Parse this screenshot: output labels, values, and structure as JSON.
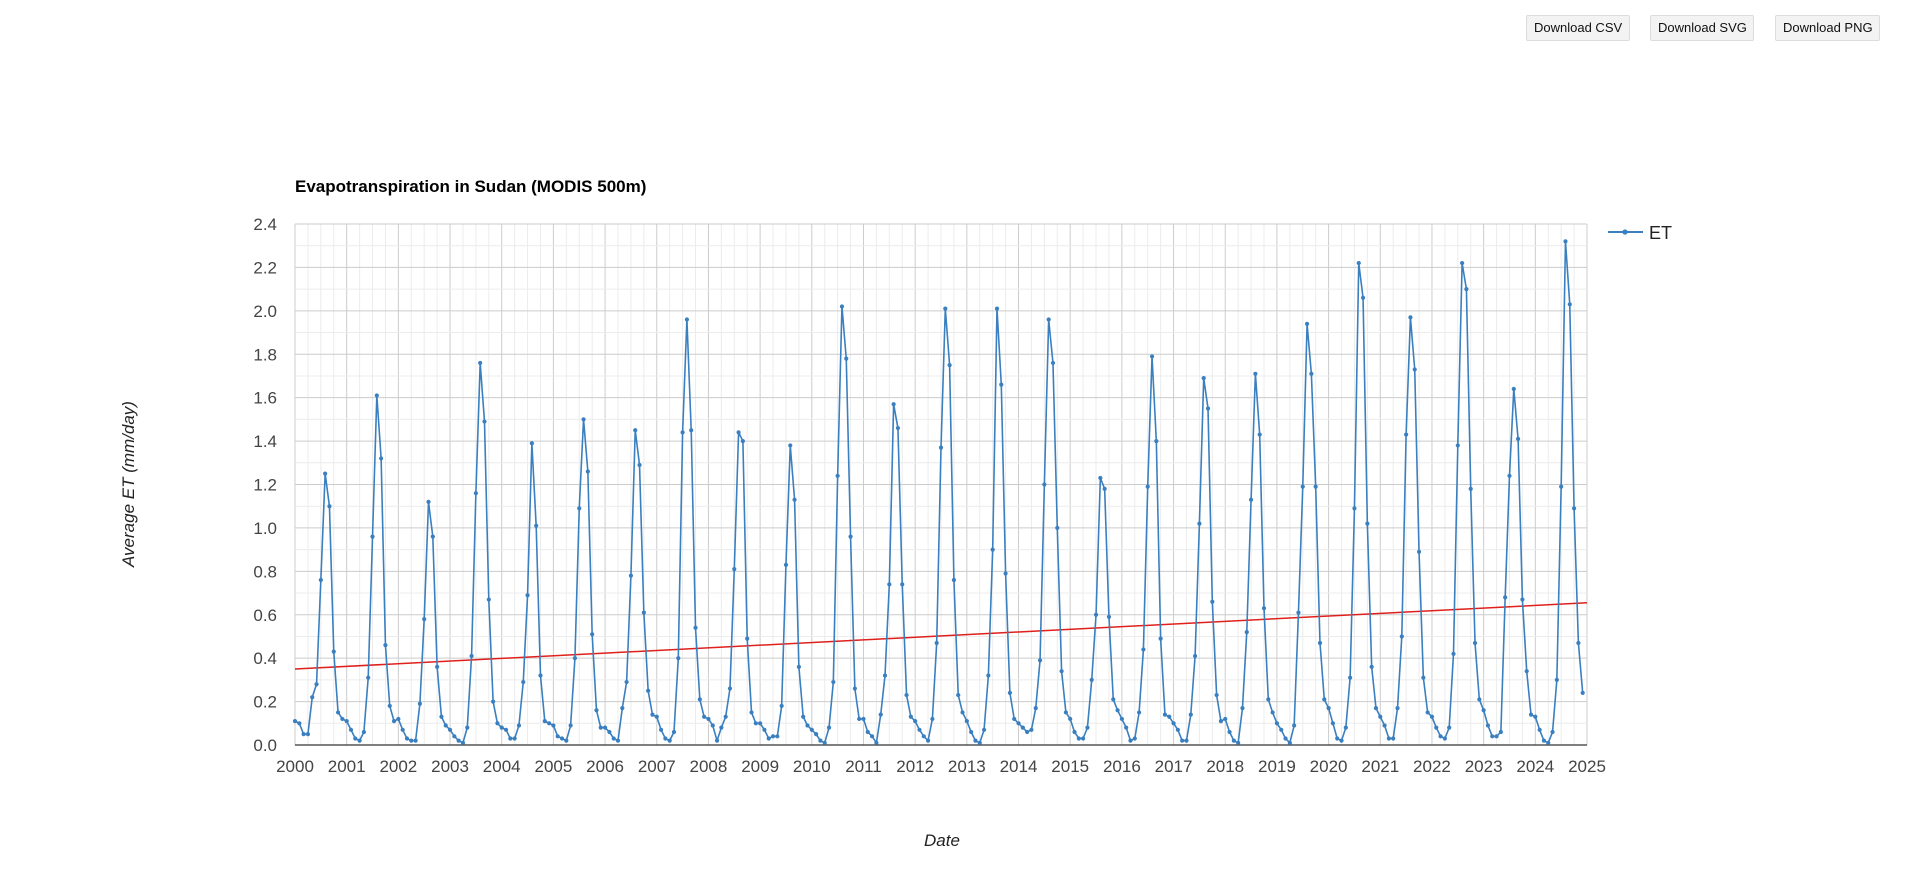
{
  "toolbar": {
    "csv_label": "Download CSV",
    "svg_label": "Download SVG",
    "png_label": "Download PNG"
  },
  "chart_data": {
    "type": "line",
    "title": "Evapotranspiration in Sudan (MODIS 500m)",
    "xlabel": "Date",
    "ylabel": "Average ET (mm/day)",
    "xlim": [
      2000,
      2025
    ],
    "ylim": [
      0,
      2.4
    ],
    "x_ticks": [
      "2000",
      "2001",
      "2002",
      "2003",
      "2004",
      "2005",
      "2006",
      "2007",
      "2008",
      "2009",
      "2010",
      "2011",
      "2012",
      "2013",
      "2014",
      "2015",
      "2016",
      "2017",
      "2018",
      "2019",
      "2020",
      "2021",
      "2022",
      "2023",
      "2024",
      "2025"
    ],
    "y_ticks": [
      "0.0",
      "0.2",
      "0.4",
      "0.6",
      "0.8",
      "1.0",
      "1.2",
      "1.4",
      "1.6",
      "1.8",
      "2.0",
      "2.2",
      "2.4"
    ],
    "grid": true,
    "legend_position": "top-right",
    "series": [
      {
        "name": "ET",
        "color": "#3a7fbf",
        "x_start_year": 2000,
        "monthly_values": [
          0.11,
          0.1,
          0.05,
          0.05,
          0.22,
          0.28,
          0.76,
          1.25,
          1.1,
          0.43,
          0.15,
          0.12,
          0.11,
          0.07,
          0.03,
          0.02,
          0.06,
          0.31,
          0.96,
          1.61,
          1.32,
          0.46,
          0.18,
          0.11,
          0.12,
          0.07,
          0.03,
          0.02,
          0.02,
          0.19,
          0.58,
          1.12,
          0.96,
          0.36,
          0.13,
          0.09,
          0.07,
          0.04,
          0.02,
          0.01,
          0.08,
          0.41,
          1.16,
          1.76,
          1.49,
          0.67,
          0.2,
          0.1,
          0.08,
          0.07,
          0.03,
          0.03,
          0.09,
          0.29,
          0.69,
          1.39,
          1.01,
          0.32,
          0.11,
          0.1,
          0.09,
          0.04,
          0.03,
          0.02,
          0.09,
          0.4,
          1.09,
          1.5,
          1.26,
          0.51,
          0.16,
          0.08,
          0.08,
          0.06,
          0.03,
          0.02,
          0.17,
          0.29,
          0.78,
          1.45,
          1.29,
          0.61,
          0.25,
          0.14,
          0.13,
          0.07,
          0.03,
          0.02,
          0.06,
          0.4,
          1.44,
          1.96,
          1.45,
          0.54,
          0.21,
          0.13,
          0.12,
          0.09,
          0.02,
          0.08,
          0.13,
          0.26,
          0.81,
          1.44,
          1.4,
          0.49,
          0.15,
          0.1,
          0.1,
          0.07,
          0.03,
          0.04,
          0.04,
          0.18,
          0.83,
          1.38,
          1.13,
          0.36,
          0.13,
          0.09,
          0.07,
          0.05,
          0.02,
          0.01,
          0.08,
          0.29,
          1.24,
          2.02,
          1.78,
          0.96,
          0.26,
          0.12,
          0.12,
          0.06,
          0.04,
          0.01,
          0.14,
          0.32,
          0.74,
          1.57,
          1.46,
          0.74,
          0.23,
          0.13,
          0.11,
          0.07,
          0.04,
          0.02,
          0.12,
          0.47,
          1.37,
          2.01,
          1.75,
          0.76,
          0.23,
          0.15,
          0.11,
          0.06,
          0.02,
          0.01,
          0.07,
          0.32,
          0.9,
          2.01,
          1.66,
          0.79,
          0.24,
          0.12,
          0.1,
          0.08,
          0.06,
          0.07,
          0.17,
          0.39,
          1.2,
          1.96,
          1.76,
          1.0,
          0.34,
          0.15,
          0.12,
          0.06,
          0.03,
          0.03,
          0.08,
          0.3,
          0.6,
          1.23,
          1.18,
          0.59,
          0.21,
          0.16,
          0.12,
          0.08,
          0.02,
          0.03,
          0.15,
          0.44,
          1.19,
          1.79,
          1.4,
          0.49,
          0.14,
          0.13,
          0.1,
          0.07,
          0.02,
          0.02,
          0.14,
          0.41,
          1.02,
          1.69,
          1.55,
          0.66,
          0.23,
          0.11,
          0.12,
          0.06,
          0.02,
          0.01,
          0.17,
          0.52,
          1.13,
          1.71,
          1.43,
          0.63,
          0.21,
          0.15,
          0.1,
          0.07,
          0.03,
          0.01,
          0.09,
          0.61,
          1.19,
          1.94,
          1.71,
          1.19,
          0.47,
          0.21,
          0.17,
          0.1,
          0.03,
          0.02,
          0.08,
          0.31,
          1.09,
          2.22,
          2.06,
          1.02,
          0.36,
          0.17,
          0.13,
          0.09,
          0.03,
          0.03,
          0.17,
          0.5,
          1.43,
          1.97,
          1.73,
          0.89,
          0.31,
          0.15,
          0.13,
          0.08,
          0.04,
          0.03,
          0.08,
          0.42,
          1.38,
          2.22,
          2.1,
          1.18,
          0.47,
          0.21,
          0.16,
          0.09,
          0.04,
          0.04,
          0.06,
          0.68,
          1.24,
          1.64,
          1.41,
          0.67,
          0.34,
          0.14,
          0.13,
          0.07,
          0.02,
          0.01,
          0.06,
          0.3,
          1.19,
          2.32,
          2.03,
          1.09,
          0.47,
          0.24
        ]
      },
      {
        "name": "trend",
        "color": "#e0201b",
        "x": [
          2000,
          2025
        ],
        "y": [
          0.35,
          0.655
        ]
      }
    ]
  }
}
